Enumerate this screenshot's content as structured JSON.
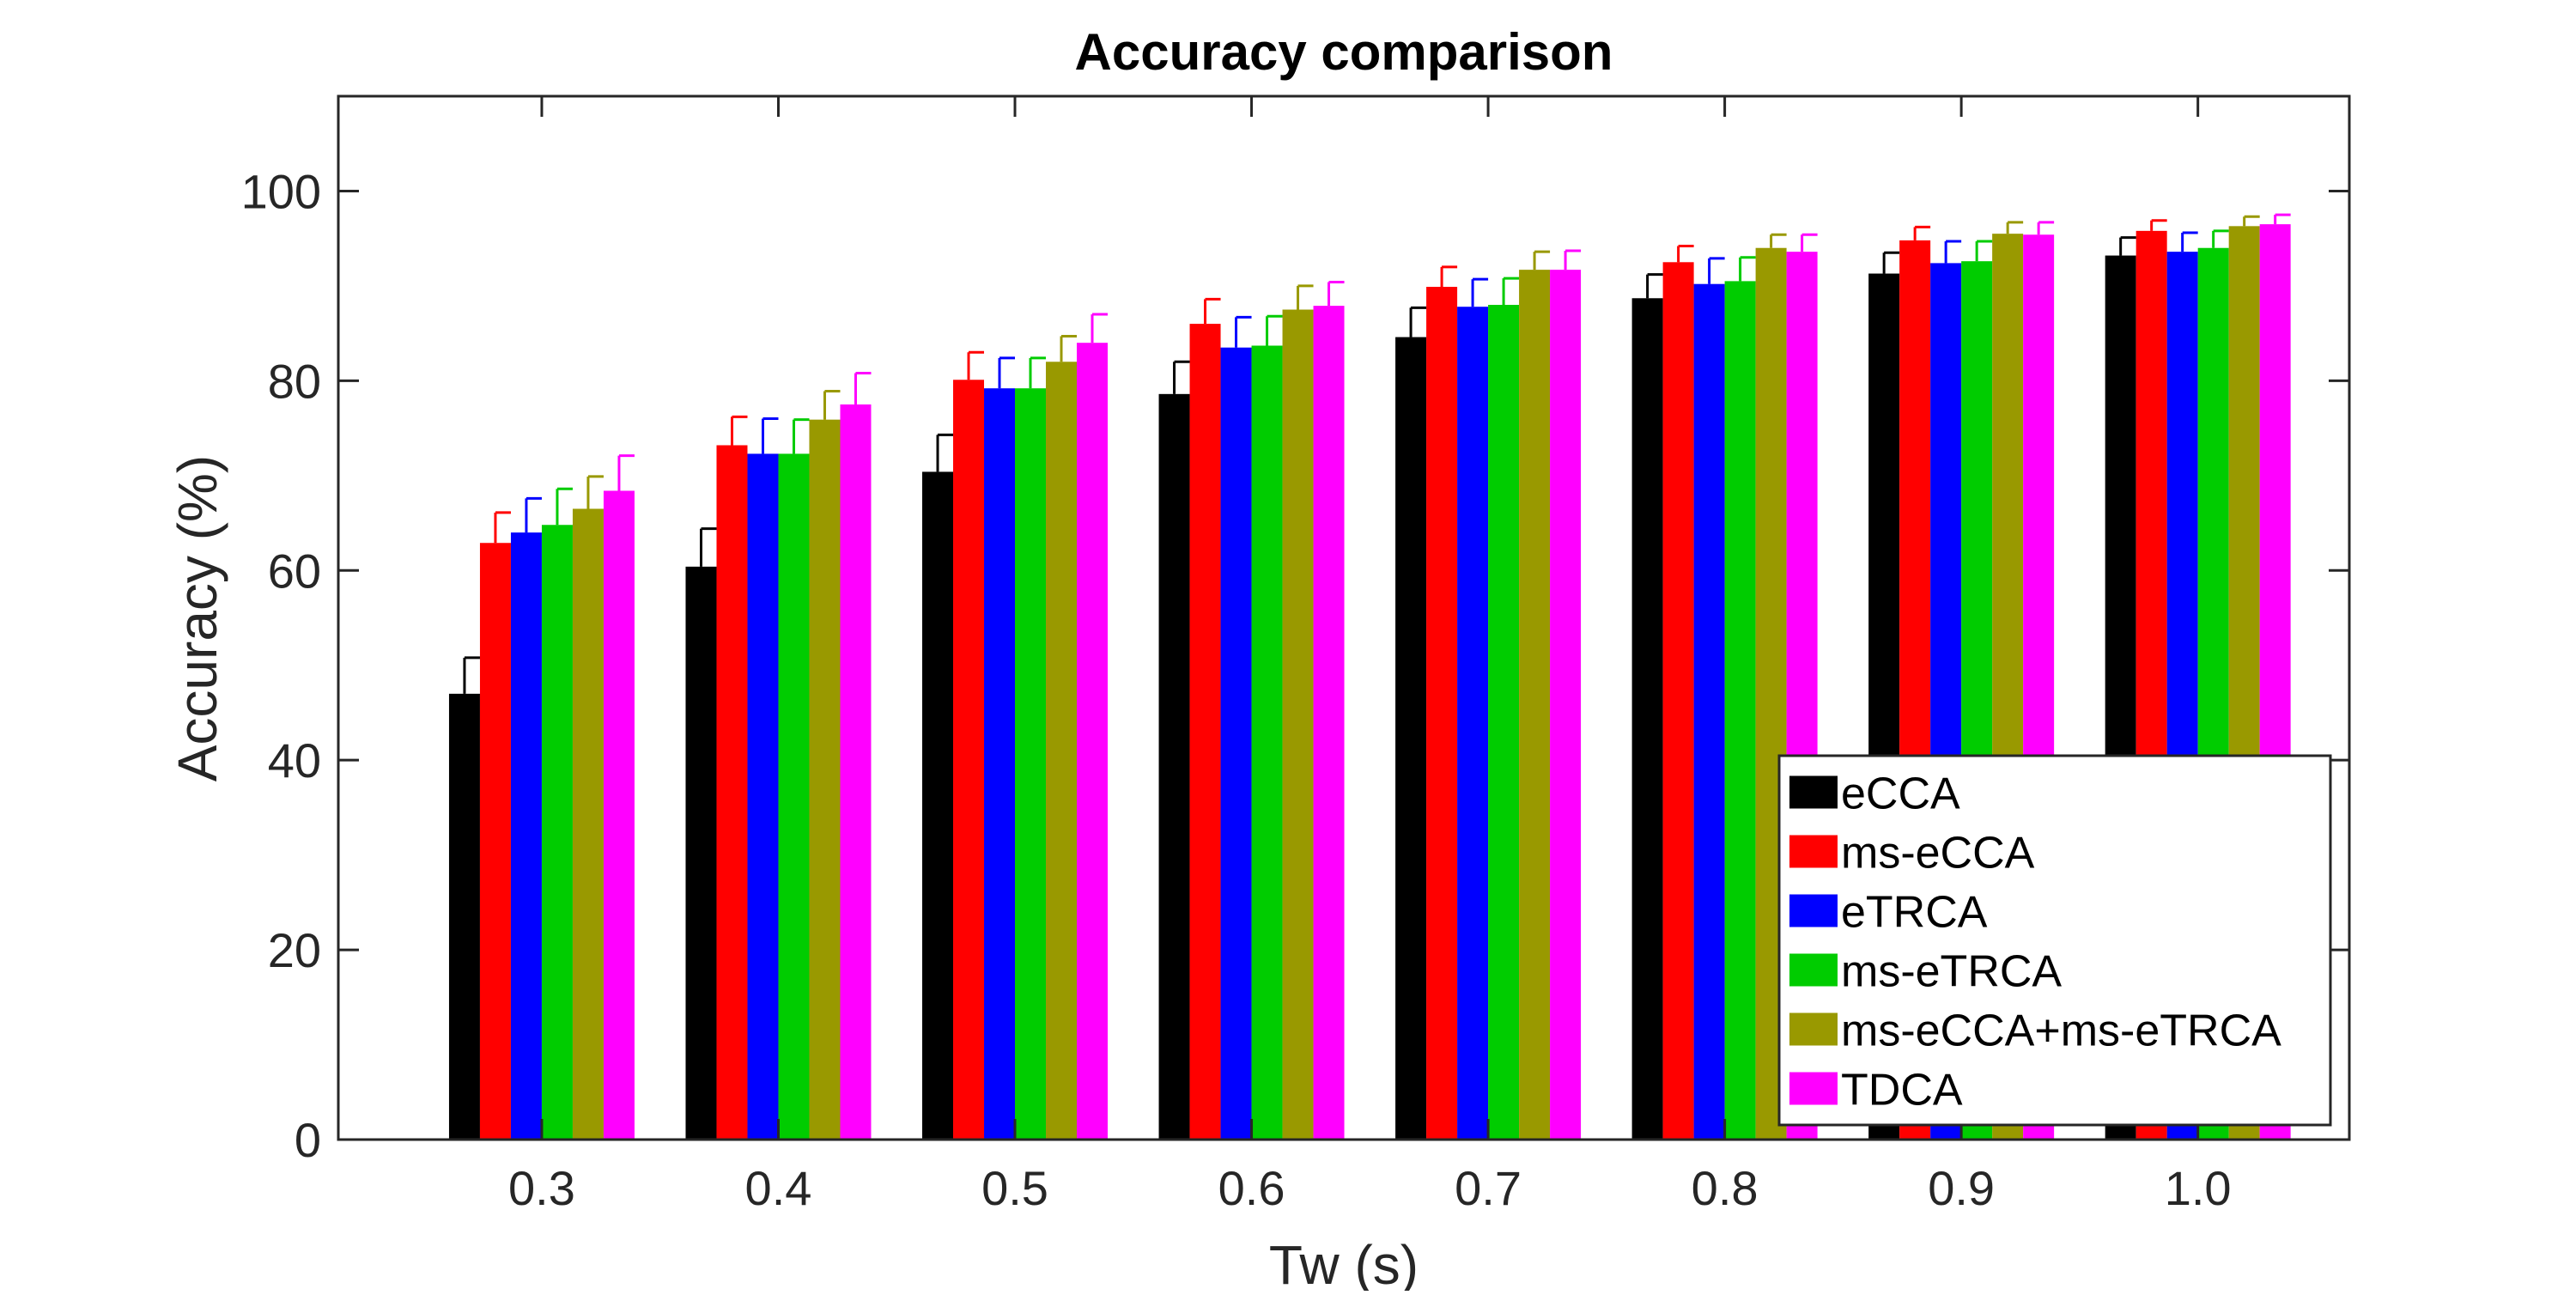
{
  "chart_data": {
    "type": "bar",
    "title": "Accuracy comparison",
    "xlabel": "Tw (s)",
    "ylabel": "Accuracy (%)",
    "categories": [
      "0.3",
      "0.4",
      "0.5",
      "0.6",
      "0.7",
      "0.8",
      "0.9",
      "1.0"
    ],
    "ylim": [
      0,
      110
    ],
    "yticks": [
      0,
      20,
      40,
      60,
      80,
      100
    ],
    "grid": false,
    "legend_position": "bottom-right",
    "series": [
      {
        "name": "eCCA",
        "color": "#000000",
        "values": [
          47.0,
          60.4,
          70.4,
          78.6,
          84.6,
          88.7,
          91.3,
          93.2
        ],
        "errors": [
          3.8,
          4.0,
          3.9,
          3.4,
          3.1,
          2.5,
          2.2,
          1.9
        ]
      },
      {
        "name": "ms-eCCA",
        "color": "#ff0000",
        "values": [
          62.9,
          73.2,
          80.1,
          86.0,
          89.9,
          92.5,
          94.8,
          95.8
        ],
        "errors": [
          3.2,
          3.0,
          2.9,
          2.6,
          2.1,
          1.7,
          1.4,
          1.1
        ]
      },
      {
        "name": "eTRCA",
        "color": "#0000ff",
        "values": [
          64.0,
          72.3,
          79.2,
          83.5,
          87.8,
          90.2,
          92.4,
          93.6
        ],
        "errors": [
          3.6,
          3.7,
          3.2,
          3.2,
          2.9,
          2.7,
          2.3,
          2.0
        ]
      },
      {
        "name": "ms-eTRCA",
        "color": "#00cc00",
        "values": [
          64.8,
          72.3,
          79.2,
          83.7,
          88.0,
          90.5,
          92.6,
          94.0
        ],
        "errors": [
          3.8,
          3.6,
          3.2,
          3.1,
          2.8,
          2.5,
          2.1,
          1.8
        ]
      },
      {
        "name": "ms-eCCA+ms-eTRCA",
        "color": "#999900",
        "values": [
          66.5,
          75.9,
          82.0,
          87.5,
          91.7,
          94.0,
          95.5,
          96.3
        ],
        "errors": [
          3.4,
          3.0,
          2.7,
          2.5,
          1.9,
          1.4,
          1.2,
          1.0
        ]
      },
      {
        "name": "TDCA",
        "color": "#ff00ff",
        "values": [
          68.4,
          77.5,
          84.0,
          87.9,
          91.7,
          93.6,
          95.4,
          96.5
        ],
        "errors": [
          3.7,
          3.3,
          3.0,
          2.5,
          2.0,
          1.8,
          1.3,
          1.0
        ]
      }
    ]
  }
}
